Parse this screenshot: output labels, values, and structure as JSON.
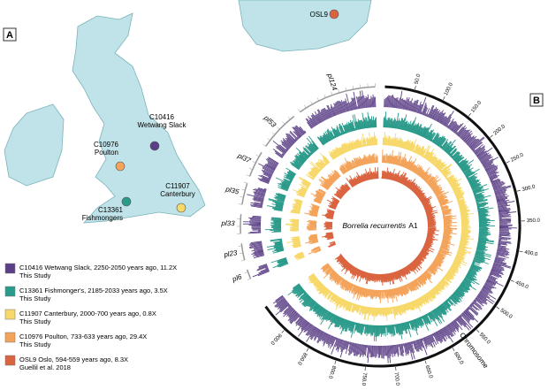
{
  "panels": {
    "a": "A",
    "b": "B"
  },
  "map": {
    "sites": [
      {
        "id": "C10416",
        "place": "Wetwang Slack",
        "color": "#5b3f86"
      },
      {
        "id": "C10976",
        "place": "Poulton",
        "color": "#f4a35a"
      },
      {
        "id": "C13361",
        "place": "Fishmongers",
        "color": "#2a9a8a"
      },
      {
        "id": "C11907",
        "place": "Canterbury",
        "color": "#f6d86b"
      }
    ],
    "osl9": "OSL9"
  },
  "legend": [
    {
      "line1": "C10416 Wetwang Slack, 2250-2050 years ago, 11.2X",
      "line2": "This Study",
      "color": "#5b3f86"
    },
    {
      "line1": "C13361 Fishmonger's, 2185-2033 years ago, 3.5X",
      "line2": "This Study",
      "color": "#2a9a8a"
    },
    {
      "line1": "C11907 Canterbury, 2000-700 years ago, 0.8X",
      "line2": "This Study",
      "color": "#f6d86b"
    },
    {
      "line1": "C10976 Poulton, 733-633 years ago, 29.4X",
      "line2": "This Study",
      "color": "#f4a35a"
    },
    {
      "line1": "OSL9 Oslo, 594-559 years ago, 8.3X",
      "line2": "Guellil et al. 2018",
      "color": "#d9643f"
    }
  ],
  "circos": {
    "center_italic": "Borrelia recurrentis",
    "center_rest": "A1",
    "chromosome": "Chromosome",
    "plasmids": [
      "pl124",
      "pl53",
      "pl37",
      "pl35",
      "pl33",
      "pl23",
      "pl6"
    ],
    "chromosome_ticks": [
      "50.0",
      "100.0",
      "150.0",
      "200.0",
      "250.0",
      "300.0",
      "350.0",
      "400.0",
      "450.0",
      "500.0",
      "550.0",
      "600.0",
      "650.0",
      "700.0",
      "750.0",
      "800.0",
      "850.0",
      "900.0"
    ]
  }
}
